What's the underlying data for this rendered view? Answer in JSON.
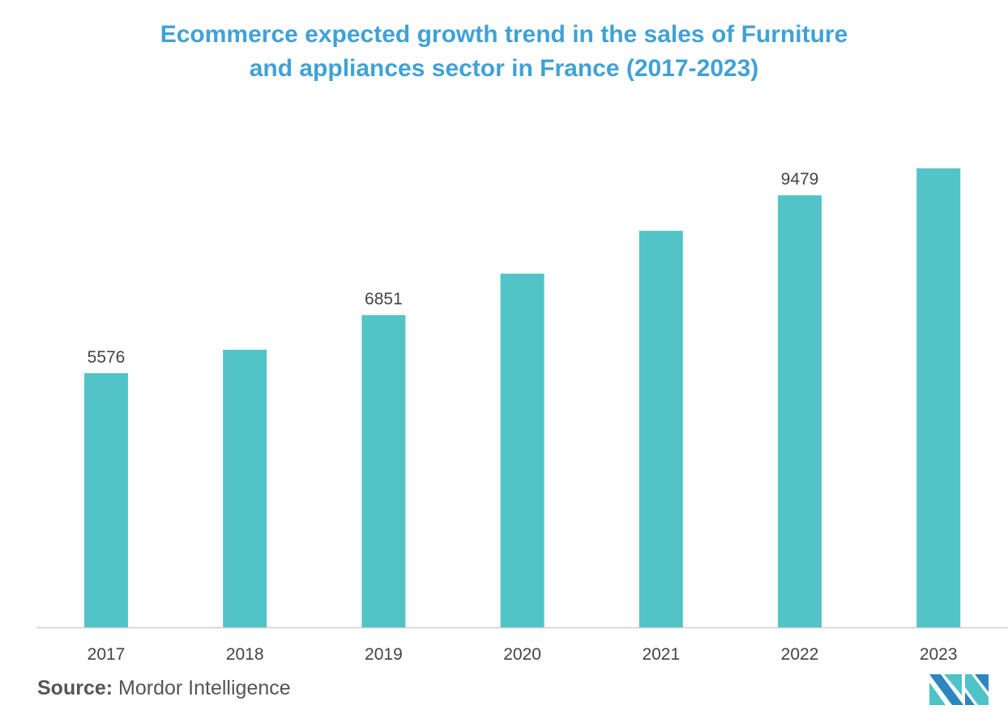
{
  "chart_data": {
    "type": "bar",
    "title": "Ecommerce expected growth trend in the sales of Furniture and appliances sector in France (2017-2023)",
    "title_lines": [
      "Ecommerce expected growth trend in the sales of Furniture",
      "and appliances sector in France (2017-2023)"
    ],
    "categories": [
      "2017",
      "2018",
      "2019",
      "2020",
      "2021",
      "2022",
      "2023"
    ],
    "values": [
      5576,
      6090,
      6851,
      7760,
      8700,
      9479,
      10070
    ],
    "data_labels": [
      "5576",
      "",
      "6851",
      "",
      "",
      "9479",
      ""
    ],
    "xlabel": "",
    "ylabel": "",
    "ylim": [
      0,
      10500
    ],
    "grid": false,
    "bar_color": "#52c4c7"
  },
  "source": {
    "label": "Source:",
    "value": "Mordor Intelligence"
  }
}
